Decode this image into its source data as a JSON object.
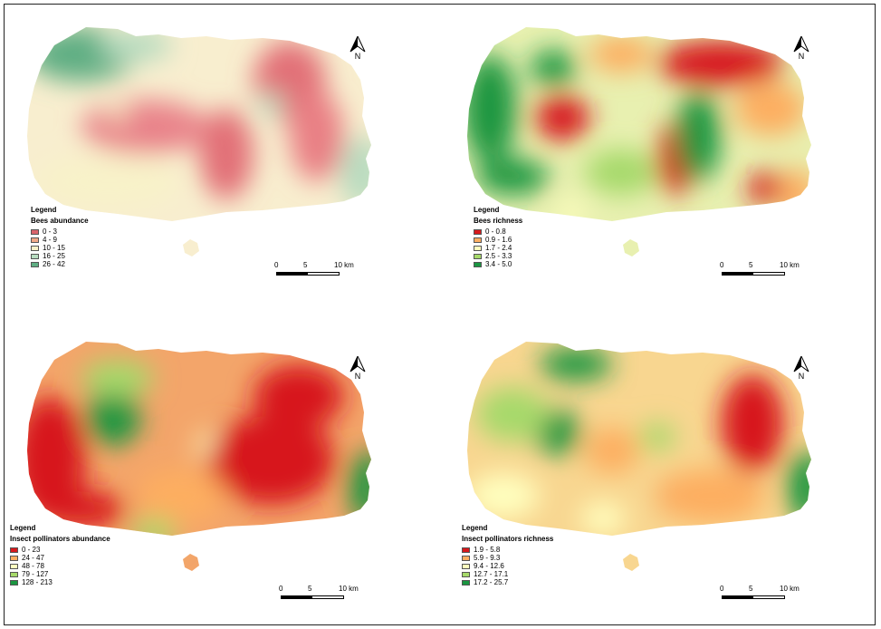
{
  "panels": [
    {
      "legend_title": "Legend",
      "variable": "Bees abundance",
      "classes": [
        {
          "label": "0 - 3",
          "color": "#d9646c"
        },
        {
          "label": "4 - 9",
          "color": "#f0a989"
        },
        {
          "label": "10 - 15",
          "color": "#f8f2c9"
        },
        {
          "label": "16 - 25",
          "color": "#b8dcc0"
        },
        {
          "label": "26 - 42",
          "color": "#5fae83"
        }
      ],
      "scale": {
        "t0": "0",
        "t1": "5",
        "t2": "10 km"
      },
      "north_label": "N"
    },
    {
      "legend_title": "Legend",
      "variable": "Bees richness",
      "classes": [
        {
          "label": "0 - 0.8",
          "color": "#d7191c"
        },
        {
          "label": "0.9 - 1.6",
          "color": "#fdae61"
        },
        {
          "label": "1.7 - 2.4",
          "color": "#ffffbf"
        },
        {
          "label": "2.5 - 3.3",
          "color": "#a6d96a"
        },
        {
          "label": "3.4 - 5.0",
          "color": "#1a9641"
        }
      ],
      "scale": {
        "t0": "0",
        "t1": "5",
        "t2": "10 km"
      },
      "north_label": "N"
    },
    {
      "legend_title": "Legend",
      "variable": "Insect pollinators abundance",
      "classes": [
        {
          "label": "0 - 23",
          "color": "#d7191c"
        },
        {
          "label": "24 - 47",
          "color": "#fdae61"
        },
        {
          "label": "48 - 78",
          "color": "#ffffbf"
        },
        {
          "label": "79 - 127",
          "color": "#a6d96a"
        },
        {
          "label": "128 - 213",
          "color": "#1a9641"
        }
      ],
      "scale": {
        "t0": "0",
        "t1": "5",
        "t2": "10 km"
      },
      "north_label": "N"
    },
    {
      "legend_title": "Legend",
      "variable": "Insect pollinators richness",
      "classes": [
        {
          "label": "1.9 - 5.8",
          "color": "#d7191c"
        },
        {
          "label": "5.9 - 9.3",
          "color": "#fdae61"
        },
        {
          "label": "9.4 - 12.6",
          "color": "#ffffbf"
        },
        {
          "label": "12.7 - 17.1",
          "color": "#a6d96a"
        },
        {
          "label": "17.2 - 25.7",
          "color": "#1a9641"
        }
      ],
      "scale": {
        "t0": "0",
        "t1": "5",
        "t2": "10 km"
      },
      "north_label": "N"
    }
  ]
}
